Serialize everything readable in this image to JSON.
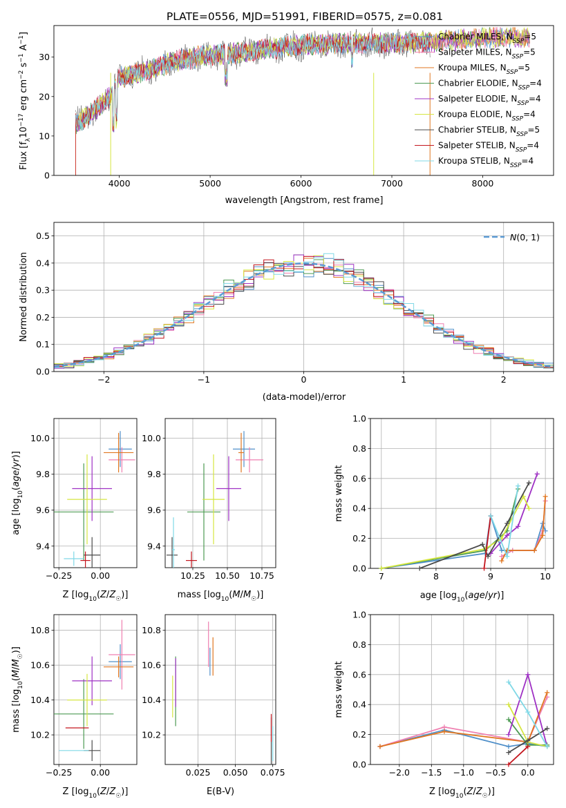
{
  "title": "PLATE=0556, MJD=51991, FIBERID=0575, z=0.081",
  "colors": {
    "Chabrier MILES": "#4f8fc9",
    "Salpeter MILES": "#ef7fb0",
    "Kroupa MILES": "#e0761f",
    "Chabrier ELODIE": "#4c9a52",
    "Salpeter ELODIE": "#9e30c4",
    "Kroupa ELODIE": "#d6e640",
    "Chabrier STELIB": "#4a4a4a",
    "Salpeter STELIB": "#c3141c",
    "Kroupa STELIB": "#7fd8e6",
    "gauss": "#5b9bd5"
  },
  "chart_data": [
    {
      "id": "spectrum",
      "type": "line",
      "xlabel": "wavelength [Angstrom, rest frame]",
      "ylabel": "Flux [f_λ10^-17 erg cm^-2 s^-1 A^-1]",
      "xlim": [
        3280,
        8780
      ],
      "ylim": [
        0,
        38
      ],
      "xticks": [
        4000,
        5000,
        6000,
        7000,
        8000
      ],
      "yticks": [
        0,
        10,
        20,
        30
      ],
      "legend_position": "lower-right",
      "series": [
        {
          "name": "Chabrier MILES, N_SSP=5"
        },
        {
          "name": "Salpeter MILES, N_SSP=5"
        },
        {
          "name": "Kroupa MILES, N_SSP=5"
        },
        {
          "name": "Chabrier ELODIE, N_SSP=4"
        },
        {
          "name": "Salpeter ELODIE, N_SSP=4"
        },
        {
          "name": "Kroupa ELODIE, N_SSP=4"
        },
        {
          "name": "Chabrier STELIB, N_SSP=5"
        },
        {
          "name": "Salpeter STELIB, N_SSP=4"
        },
        {
          "name": "Kroupa STELIB, N_SSP=4"
        }
      ],
      "continuum": {
        "x": [
          3520,
          3700,
          3900,
          4000,
          4300,
          4600,
          5000,
          5300,
          5600,
          6000,
          6500,
          7000,
          7500,
          7800,
          8000,
          8500
        ],
        "y": [
          13,
          16,
          20,
          25,
          26.5,
          29,
          30.5,
          31,
          32,
          33,
          33.5,
          33.5,
          34,
          34.5,
          35,
          35
        ]
      }
    },
    {
      "id": "residuals",
      "type": "histogram",
      "xlabel": "(data-model)/error",
      "ylabel": "Normed distribution",
      "xlim": [
        -2.5,
        2.5
      ],
      "ylim": [
        0,
        0.55
      ],
      "xticks": [
        -2,
        -1,
        0,
        1,
        2
      ],
      "yticks": [
        0.0,
        0.1,
        0.2,
        0.3,
        0.4,
        0.5
      ],
      "bin_width": 0.1,
      "legend": "N(0,1)",
      "legend_position": "top-right",
      "gaussian": {
        "mean": 0,
        "sigma": 1
      }
    },
    {
      "id": "age-vs-Z",
      "type": "scatter",
      "xlabel": "Z [log10(Z/Z☉)]",
      "ylabel": "age [log10(age/yr)]",
      "xlim": [
        -0.28,
        0.22
      ],
      "ylim": [
        9.28,
        10.11
      ],
      "xticks": [
        -0.25,
        0.0
      ],
      "yticks": [
        9.4,
        9.6,
        9.8,
        10.0
      ],
      "points": [
        {
          "model": "Chabrier MILES",
          "x": 0.12,
          "xerr": 0.07,
          "y": 9.94,
          "yerr": 0.1
        },
        {
          "model": "Salpeter MILES",
          "x": 0.13,
          "xerr": 0.08,
          "y": 9.88,
          "yerr": 0.07
        },
        {
          "model": "Kroupa MILES",
          "x": 0.11,
          "xerr": 0.09,
          "y": 9.92,
          "yerr": 0.11
        },
        {
          "model": "Chabrier ELODIE",
          "x": -0.1,
          "xerr": 0.18,
          "y": 9.59,
          "yerr": 0.27
        },
        {
          "model": "Salpeter ELODIE",
          "x": -0.05,
          "xerr": 0.12,
          "y": 9.72,
          "yerr": 0.18
        },
        {
          "model": "Kroupa ELODIE",
          "x": -0.08,
          "xerr": 0.12,
          "y": 9.66,
          "yerr": 0.25
        },
        {
          "model": "Chabrier STELIB",
          "x": -0.05,
          "xerr": 0.05,
          "y": 9.35,
          "yerr": 0.1
        },
        {
          "model": "Salpeter STELIB",
          "x": -0.09,
          "xerr": 0.03,
          "y": 9.32,
          "yerr": 0.05
        },
        {
          "model": "Kroupa STELIB",
          "x": -0.16,
          "xerr": 0.06,
          "y": 9.33,
          "yerr": 0.04
        }
      ]
    },
    {
      "id": "age-vs-mass",
      "type": "scatter",
      "xlabel": "mass [log10(M/M☉)]",
      "ylabel": "",
      "xlim": [
        10.05,
        10.85
      ],
      "ylim": [
        9.28,
        10.11
      ],
      "xticks": [
        10.25,
        10.5,
        10.75
      ],
      "yticks": [
        9.4,
        9.6,
        9.8,
        10.0
      ],
      "points": [
        {
          "model": "Chabrier MILES",
          "x": 10.62,
          "xerr": 0.08,
          "y": 9.94,
          "yerr": 0.1
        },
        {
          "model": "Salpeter MILES",
          "x": 10.66,
          "xerr": 0.1,
          "y": 9.88,
          "yerr": 0.07
        },
        {
          "model": "Kroupa MILES",
          "x": 10.6,
          "xerr": 0.02,
          "y": 9.92,
          "yerr": 0.11
        },
        {
          "model": "Chabrier ELODIE",
          "x": 10.33,
          "xerr": 0.12,
          "y": 9.59,
          "yerr": 0.27
        },
        {
          "model": "Salpeter ELODIE",
          "x": 10.51,
          "xerr": 0.09,
          "y": 9.72,
          "yerr": 0.18
        },
        {
          "model": "Kroupa ELODIE",
          "x": 10.4,
          "xerr": 0.08,
          "y": 9.66,
          "yerr": 0.25
        },
        {
          "model": "Chabrier STELIB",
          "x": 10.1,
          "xerr": 0.04,
          "y": 9.35,
          "yerr": 0.1
        },
        {
          "model": "Salpeter STELIB",
          "x": 10.24,
          "xerr": 0.04,
          "y": 9.32,
          "yerr": 0.05
        },
        {
          "model": "Kroupa STELIB",
          "x": 10.11,
          "xerr": 0.01,
          "y": 9.38,
          "yerr": 0.18
        }
      ]
    },
    {
      "id": "weights-vs-age",
      "type": "line",
      "xlabel": "age  [log10(age/yr)]",
      "ylabel": "mass weight",
      "xlim": [
        6.8,
        10.15
      ],
      "ylim": [
        0.0,
        1.0
      ],
      "xticks": [
        7,
        8,
        9,
        10
      ],
      "yticks": [
        0.0,
        0.2,
        0.4,
        0.6,
        0.8,
        1.0
      ],
      "series": [
        {
          "model": "Chabrier MILES",
          "x": [
            7.0,
            8.9,
            9.0,
            9.2,
            9.4,
            9.8,
            9.95,
            10.0
          ],
          "y": [
            0.0,
            0.1,
            0.35,
            0.12,
            0.12,
            0.12,
            0.3,
            0.25
          ]
        },
        {
          "model": "Salpeter MILES",
          "x": [
            9.2,
            9.4,
            9.8,
            9.95,
            10.0
          ],
          "y": [
            0.08,
            0.12,
            0.12,
            0.25,
            0.45
          ]
        },
        {
          "model": "Kroupa MILES",
          "x": [
            9.2,
            9.3,
            9.8,
            9.95,
            10.0
          ],
          "y": [
            0.05,
            0.12,
            0.12,
            0.22,
            0.48
          ]
        },
        {
          "model": "Chabrier ELODIE",
          "x": [
            7.0,
            8.9,
            9.3,
            9.5
          ],
          "y": [
            0.0,
            0.12,
            0.25,
            0.53
          ]
        },
        {
          "model": "Salpeter ELODIE",
          "x": [
            9.0,
            9.3,
            9.5,
            9.85
          ],
          "y": [
            0.1,
            0.22,
            0.28,
            0.63
          ]
        },
        {
          "model": "Kroupa ELODIE",
          "x": [
            7.0,
            8.9,
            9.2,
            9.6,
            9.7
          ],
          "y": [
            0.0,
            0.13,
            0.2,
            0.48,
            0.4
          ]
        },
        {
          "model": "Chabrier STELIB",
          "x": [
            7.7,
            8.85,
            8.95,
            9.3,
            9.7
          ],
          "y": [
            0.0,
            0.16,
            0.08,
            0.3,
            0.57
          ]
        },
        {
          "model": "Salpeter STELIB",
          "x": [
            8.88,
            9.0
          ],
          "y": [
            0.0,
            0.35
          ]
        },
        {
          "model": "Kroupa STELIB",
          "x": [
            9.0,
            9.3,
            9.5
          ],
          "y": [
            0.35,
            0.08,
            0.55
          ]
        }
      ]
    },
    {
      "id": "mass-vs-Z",
      "type": "scatter",
      "xlabel": "Z [log10(Z/Z☉)]",
      "ylabel": "mass [log10(M/M☉)]",
      "xlim": [
        -0.28,
        0.22
      ],
      "ylim": [
        10.03,
        10.89
      ],
      "xticks": [
        -0.25,
        0.0
      ],
      "yticks": [
        10.2,
        10.4,
        10.6,
        10.8
      ],
      "points": [
        {
          "model": "Chabrier MILES",
          "x": 0.12,
          "xerr": 0.07,
          "y": 10.62,
          "yerr": 0.1
        },
        {
          "model": "Salpeter MILES",
          "x": 0.13,
          "xerr": 0.08,
          "y": 10.66,
          "yerr": 0.2
        },
        {
          "model": "Kroupa MILES",
          "x": 0.11,
          "xerr": 0.09,
          "y": 10.59,
          "yerr": 0.06
        },
        {
          "model": "Chabrier ELODIE",
          "x": -0.1,
          "xerr": 0.18,
          "y": 10.32,
          "yerr": 0.2
        },
        {
          "model": "Salpeter ELODIE",
          "x": -0.05,
          "xerr": 0.12,
          "y": 10.51,
          "yerr": 0.14
        },
        {
          "model": "Kroupa ELODIE",
          "x": -0.08,
          "xerr": 0.12,
          "y": 10.4,
          "yerr": 0.15
        },
        {
          "model": "Chabrier STELIB",
          "x": -0.05,
          "xerr": 0.05,
          "y": 10.11,
          "yerr": 0.06
        },
        {
          "model": "Salpeter STELIB",
          "x": -0.14,
          "xerr": 0.07,
          "y": 10.24,
          "yerr": 0.0
        },
        {
          "model": "Kroupa STELIB",
          "x": -0.16,
          "xerr": 0.09,
          "y": 10.11,
          "yerr": 0.0
        }
      ]
    },
    {
      "id": "mass-vs-EBV",
      "type": "scatter",
      "xlabel": "E(B-V)",
      "ylabel": "",
      "xlim": [
        0.003,
        0.077
      ],
      "ylim": [
        10.03,
        10.89
      ],
      "xticks": [
        0.025,
        0.05,
        0.075
      ],
      "yticks": [
        10.2,
        10.4,
        10.6,
        10.8
      ],
      "points": [
        {
          "model": "Chabrier MILES",
          "x": 0.033,
          "xerr": 0,
          "y": 10.62,
          "yerr": 0.08
        },
        {
          "model": "Salpeter MILES",
          "x": 0.032,
          "xerr": 0,
          "y": 10.72,
          "yerr": 0.13
        },
        {
          "model": "Kroupa MILES",
          "x": 0.035,
          "xerr": 0,
          "y": 10.65,
          "yerr": 0.11
        },
        {
          "model": "Chabrier ELODIE",
          "x": 0.01,
          "xerr": 0,
          "y": 10.45,
          "yerr": 0.2
        },
        {
          "model": "Salpeter ELODIE",
          "x": 0.01,
          "xerr": 0,
          "y": 10.5,
          "yerr": 0.14
        },
        {
          "model": "Kroupa ELODIE",
          "x": 0.008,
          "xerr": 0,
          "y": 10.42,
          "yerr": 0.12
        },
        {
          "model": "Chabrier STELIB",
          "x": 0.074,
          "xerr": 0,
          "y": 10.14,
          "yerr": 0.16
        },
        {
          "model": "Salpeter STELIB",
          "x": 0.074,
          "xerr": 0,
          "y": 10.24,
          "yerr": 0.08
        },
        {
          "model": "Kroupa STELIB",
          "x": 0.075,
          "xerr": 0,
          "y": 10.15,
          "yerr": 0.1
        }
      ]
    },
    {
      "id": "weights-vs-Z",
      "type": "line",
      "xlabel": "Z [log10(Z/Z☉)]",
      "ylabel": "mass weight",
      "xlim": [
        -2.45,
        0.4
      ],
      "ylim": [
        0.0,
        1.0
      ],
      "xticks": [
        -2.0,
        -1.5,
        -1.0,
        -0.5,
        0.0
      ],
      "yticks": [
        0.0,
        0.2,
        0.4,
        0.6,
        0.8,
        1.0
      ],
      "series": [
        {
          "model": "Chabrier MILES",
          "x": [
            -2.3,
            -1.3,
            -0.3,
            0.0,
            0.3
          ],
          "y": [
            0.12,
            0.23,
            0.12,
            0.14,
            0.12
          ]
        },
        {
          "model": "Salpeter MILES",
          "x": [
            -2.3,
            -1.3,
            0.0,
            0.3
          ],
          "y": [
            0.12,
            0.25,
            0.15,
            0.45
          ]
        },
        {
          "model": "Kroupa MILES",
          "x": [
            -2.3,
            -1.3,
            0.0,
            0.3
          ],
          "y": [
            0.12,
            0.22,
            0.15,
            0.48
          ]
        },
        {
          "model": "Chabrier ELODIE",
          "x": [
            -0.3,
            0.0,
            0.3
          ],
          "y": [
            0.3,
            0.13,
            0.13
          ]
        },
        {
          "model": "Salpeter ELODIE",
          "x": [
            -0.3,
            0.0,
            0.3
          ],
          "y": [
            0.2,
            0.6,
            0.12
          ]
        },
        {
          "model": "Kroupa ELODIE",
          "x": [
            -0.3,
            0.0,
            0.3
          ],
          "y": [
            0.4,
            0.15,
            0.12
          ]
        },
        {
          "model": "Chabrier STELIB",
          "x": [
            -0.3,
            0.0,
            0.3
          ],
          "y": [
            0.08,
            0.16,
            0.24
          ]
        },
        {
          "model": "Salpeter STELIB",
          "x": [
            -0.3,
            0.0
          ],
          "y": [
            0.0,
            0.12
          ]
        },
        {
          "model": "Kroupa STELIB",
          "x": [
            -0.3,
            0.0,
            0.3
          ],
          "y": [
            0.55,
            0.35,
            0.12
          ]
        }
      ]
    }
  ]
}
